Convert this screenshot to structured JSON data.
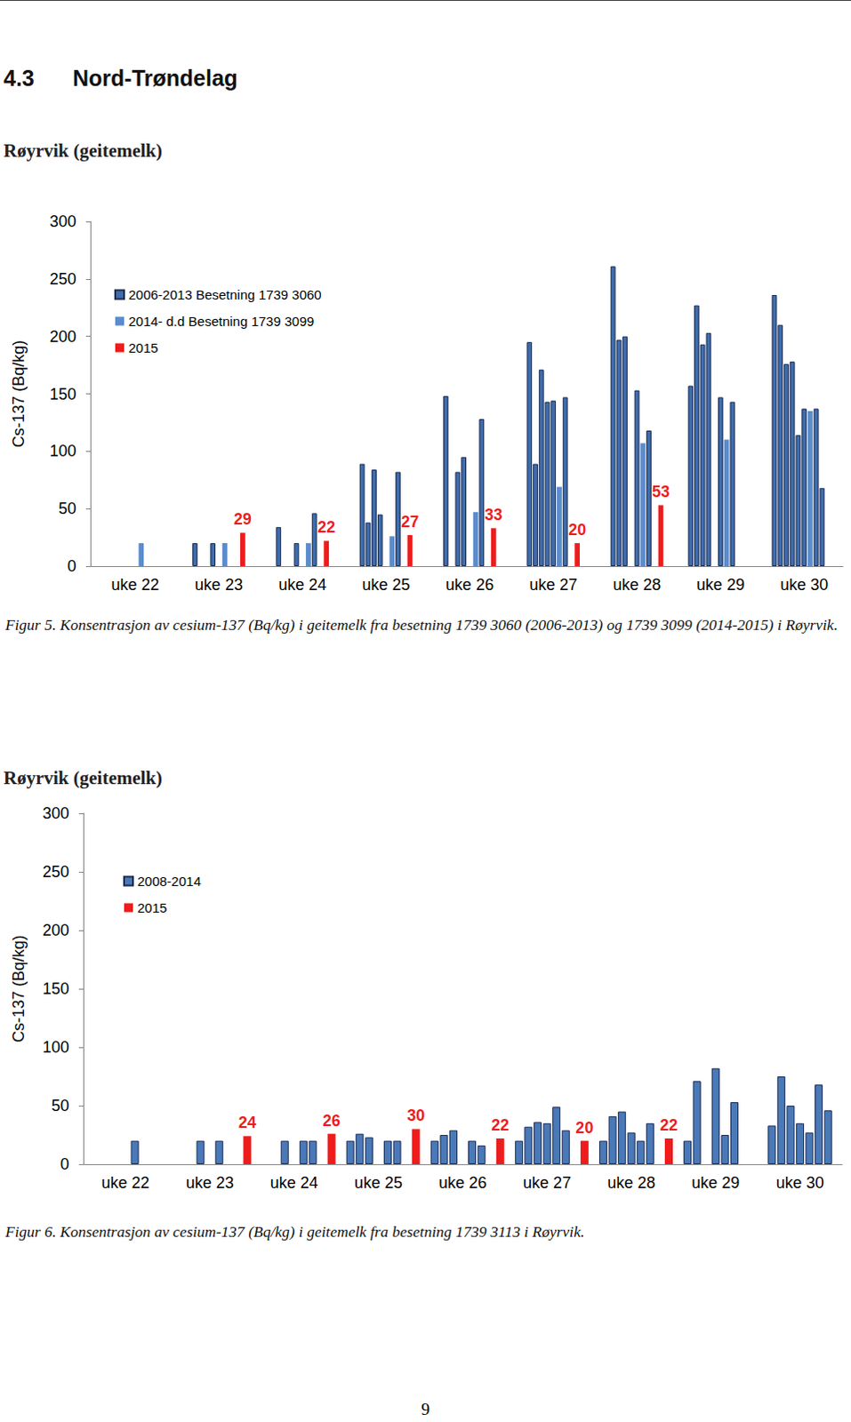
{
  "heading": {
    "number": "4.3",
    "title": "Nord-Trøndelag"
  },
  "chart_data": [
    {
      "type": "bar",
      "title": "Røyrvik (geitemelk)",
      "caption": "Figur 5. Konsentrasjon av cesium-137 (Bq/kg) i geitemelk fra besetning 1739 3060 (2006-2013) og 1739 3099 (2014-2015) i Røyrvik.",
      "y_label": "Cs-137 (Bq/kg)",
      "categories": [
        null,
        null,
        null,
        null,
        null,
        null,
        null,
        "uke 22",
        null,
        null,
        null,
        null,
        null,
        null,
        null,
        null,
        null,
        null,
        null,
        null,
        null,
        "uke 23",
        null,
        null,
        null,
        null,
        null,
        null,
        null,
        null,
        null,
        null,
        null,
        null,
        null,
        "uke 24",
        null,
        null,
        null,
        null,
        null,
        null,
        null,
        null,
        null,
        null,
        null,
        null,
        null,
        "uke 25",
        null,
        null,
        null,
        null,
        null,
        null,
        null,
        null,
        null,
        null,
        null,
        null,
        null,
        "uke 26",
        null,
        null,
        null,
        null,
        null,
        null,
        null,
        null,
        null,
        null,
        null,
        null,
        null,
        "uke 27",
        null,
        null,
        null,
        null,
        null,
        null,
        null,
        null,
        null,
        null,
        null,
        null,
        null,
        "uke 28",
        null,
        null,
        null,
        null,
        null,
        null,
        null,
        null,
        null,
        null,
        null,
        null,
        null,
        "uke 29",
        null,
        null,
        null,
        null,
        null,
        null,
        null,
        null,
        null,
        null,
        null,
        null,
        null,
        "uke 30",
        null,
        null,
        null,
        null,
        null,
        null
      ],
      "series": [
        {
          "name": "2006-2013 Besetning 1739 3060",
          "color": "#3f6cab",
          "values": [
            null,
            null,
            null,
            null,
            null,
            null,
            null,
            null,
            null,
            null,
            null,
            null,
            null,
            null,
            null,
            null,
            null,
            20,
            null,
            null,
            20,
            null,
            null,
            null,
            null,
            null,
            null,
            null,
            null,
            null,
            null,
            34,
            null,
            null,
            20,
            null,
            null,
            46,
            null,
            null,
            null,
            null,
            null,
            null,
            null,
            89,
            38,
            84,
            45,
            null,
            null,
            82,
            null,
            null,
            null,
            null,
            null,
            null,
            null,
            148,
            null,
            82,
            95,
            null,
            null,
            128,
            null,
            null,
            null,
            null,
            null,
            null,
            null,
            195,
            89,
            171,
            143,
            144,
            null,
            147,
            null,
            null,
            null,
            null,
            null,
            null,
            null,
            261,
            197,
            200,
            null,
            153,
            null,
            118,
            null,
            null,
            null,
            null,
            null,
            null,
            157,
            227,
            193,
            203,
            null,
            147,
            null,
            143,
            null,
            null,
            null,
            null,
            null,
            null,
            236,
            210,
            176,
            178,
            114,
            137,
            null,
            137,
            68,
            null,
            null,
            null
          ]
        },
        {
          "name": "2014- d.d Besetning 1739 3099",
          "color": "#5b8ccc",
          "values": [
            null,
            null,
            null,
            null,
            null,
            null,
            null,
            null,
            20,
            null,
            null,
            null,
            null,
            null,
            null,
            null,
            null,
            null,
            null,
            null,
            null,
            null,
            20,
            null,
            null,
            null,
            null,
            null,
            null,
            null,
            null,
            null,
            null,
            null,
            null,
            null,
            20,
            null,
            null,
            null,
            null,
            null,
            null,
            null,
            null,
            null,
            null,
            null,
            null,
            null,
            26,
            null,
            null,
            null,
            null,
            null,
            null,
            null,
            null,
            null,
            null,
            null,
            null,
            null,
            47,
            null,
            null,
            null,
            null,
            null,
            null,
            null,
            null,
            null,
            null,
            null,
            null,
            null,
            69,
            null,
            null,
            null,
            null,
            null,
            null,
            null,
            null,
            null,
            null,
            null,
            null,
            null,
            107,
            null,
            null,
            null,
            null,
            null,
            null,
            null,
            null,
            null,
            null,
            null,
            null,
            null,
            110,
            null,
            null,
            null,
            null,
            null,
            null,
            null,
            null,
            null,
            null,
            null,
            null,
            null,
            135,
            null,
            null,
            null,
            null,
            null
          ]
        },
        {
          "name": "2015",
          "color": "#ee1c1c",
          "data_labels": true,
          "values": [
            null,
            null,
            null,
            null,
            null,
            null,
            null,
            null,
            null,
            null,
            null,
            null,
            null,
            null,
            null,
            null,
            null,
            null,
            null,
            null,
            null,
            null,
            null,
            null,
            null,
            29,
            null,
            null,
            null,
            null,
            null,
            null,
            null,
            null,
            null,
            null,
            null,
            null,
            null,
            22,
            null,
            null,
            null,
            null,
            null,
            null,
            null,
            null,
            null,
            null,
            null,
            null,
            null,
            27,
            null,
            null,
            null,
            null,
            null,
            null,
            null,
            null,
            null,
            null,
            null,
            null,
            null,
            33,
            null,
            null,
            null,
            null,
            null,
            null,
            null,
            null,
            null,
            null,
            null,
            null,
            null,
            20,
            null,
            null,
            null,
            null,
            null,
            null,
            null,
            null,
            null,
            null,
            null,
            null,
            null,
            53,
            null,
            null,
            null,
            null,
            null,
            null,
            null,
            null,
            null,
            null,
            null,
            null,
            null,
            null,
            null,
            null,
            null,
            null,
            null,
            null,
            null,
            null,
            null,
            null,
            null,
            null,
            null,
            null,
            null,
            null
          ]
        }
      ],
      "ylim": [
        0,
        300
      ],
      "yticks": [
        0,
        50,
        100,
        150,
        200,
        250,
        300
      ],
      "grid": false,
      "legend": "upper left"
    },
    {
      "type": "bar",
      "title": "Røyrvik (geitemelk)",
      "caption": "Figur 6. Konsentrasjon av cesium-137 (Bq/kg) i geitemelk fra besetning 1739 3113 i Røyrvik.",
      "y_label": "Cs-137 (Bq/kg)",
      "categories": [
        null,
        null,
        null,
        null,
        "uke 22",
        null,
        null,
        null,
        null,
        null,
        null,
        null,
        null,
        "uke 23",
        null,
        null,
        null,
        null,
        null,
        null,
        null,
        null,
        "uke 24",
        null,
        null,
        null,
        null,
        null,
        null,
        null,
        null,
        "uke 25",
        null,
        null,
        null,
        null,
        null,
        null,
        null,
        null,
        "uke 26",
        null,
        null,
        null,
        null,
        null,
        null,
        null,
        null,
        "uke 27",
        null,
        null,
        null,
        null,
        null,
        null,
        null,
        null,
        "uke 28",
        null,
        null,
        null,
        null,
        null,
        null,
        null,
        null,
        "uke 29",
        null,
        null,
        null,
        null,
        null,
        null,
        null,
        null,
        "uke 30",
        null,
        null,
        null,
        null
      ],
      "series": [
        {
          "name": "2008-2014",
          "color": "#4a79b8",
          "values": [
            null,
            null,
            null,
            null,
            null,
            20,
            null,
            null,
            null,
            null,
            null,
            null,
            20,
            null,
            20,
            null,
            null,
            null,
            null,
            null,
            null,
            20,
            null,
            20,
            20,
            null,
            null,
            null,
            20,
            26,
            23,
            null,
            20,
            20,
            null,
            null,
            null,
            20,
            25,
            29,
            null,
            20,
            16,
            null,
            null,
            null,
            20,
            32,
            36,
            35,
            49,
            29,
            null,
            null,
            null,
            20,
            41,
            45,
            27,
            20,
            35,
            null,
            null,
            null,
            20,
            71,
            null,
            82,
            25,
            53,
            null,
            null,
            null,
            33,
            75,
            50,
            35,
            27,
            68,
            46,
            null
          ]
        },
        {
          "name": "2015",
          "color": "#ee1c1c",
          "data_labels": true,
          "values": [
            null,
            null,
            null,
            null,
            null,
            null,
            null,
            null,
            null,
            null,
            null,
            null,
            null,
            null,
            null,
            null,
            null,
            24,
            null,
            null,
            null,
            null,
            null,
            null,
            null,
            null,
            26,
            null,
            null,
            null,
            null,
            null,
            null,
            null,
            null,
            30,
            null,
            null,
            null,
            null,
            null,
            null,
            null,
            null,
            22,
            null,
            null,
            null,
            null,
            null,
            null,
            null,
            null,
            20,
            null,
            null,
            null,
            null,
            null,
            null,
            null,
            null,
            22,
            null,
            null,
            null,
            null,
            null,
            null,
            null,
            null,
            null,
            null,
            null,
            null,
            null,
            null,
            null,
            null,
            null,
            null
          ]
        }
      ],
      "ylim": [
        0,
        300
      ],
      "yticks": [
        0,
        50,
        100,
        150,
        200,
        250,
        300
      ],
      "grid": false,
      "legend": "upper left"
    }
  ],
  "page_number": "9"
}
